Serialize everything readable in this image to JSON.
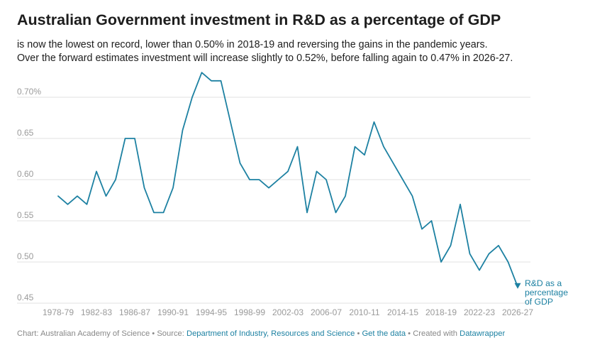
{
  "header": {
    "title": "Australian Government investment in R&D as a percentage of GDP",
    "description_line1": "is now the lowest on record, lower than 0.50% in 2018-19 and reversing the gains in the pandemic years.",
    "description_line2": "Over the forward estimates investment will increase slightly to 0.52%, before falling again to 0.47% in 2026-27."
  },
  "footer": {
    "chart_credit": "Chart: Australian Academy of Science",
    "sep1": " • ",
    "source_label": "Source: ",
    "source_link": "Department of Industry, Resources and Science",
    "sep2": " • ",
    "get_data": "Get the data",
    "sep3": " • ",
    "created_with": "Created with ",
    "datawrapper": "Datawrapper"
  },
  "colors": {
    "line": "#1d81a2",
    "grid": "#e2e2e2",
    "tick_text": "#9a9a9a"
  },
  "chart_data": {
    "type": "line",
    "title": "Australian Government investment in R&D as a percentage of GDP",
    "xlabel": "",
    "ylabel": "",
    "ylim": [
      0.45,
      0.72
    ],
    "y_ticks": [
      0.45,
      0.5,
      0.55,
      0.6,
      0.65,
      0.7
    ],
    "y_tick_labels": [
      "0.45",
      "0.50",
      "0.55",
      "0.60",
      "0.65",
      "0.70%"
    ],
    "x_tick_labels": [
      "1978-79",
      "1982-83",
      "1986-87",
      "1990-91",
      "1994-95",
      "1998-99",
      "2002-03",
      "2006-07",
      "2010-11",
      "2014-15",
      "2018-19",
      "2022-23",
      "2026-27"
    ],
    "grid": true,
    "series": [
      {
        "name": "R&D as a percentage of GDP",
        "label_lines": [
          "R&D as a",
          "percentage",
          "of GDP"
        ],
        "x": [
          "1978-79",
          "1979-80",
          "1980-81",
          "1981-82",
          "1982-83",
          "1983-84",
          "1984-85",
          "1985-86",
          "1986-87",
          "1987-88",
          "1988-89",
          "1989-90",
          "1990-91",
          "1991-92",
          "1992-93",
          "1993-94",
          "1994-95",
          "1995-96",
          "1996-97",
          "1997-98",
          "1998-99",
          "1999-00",
          "2000-01",
          "2001-02",
          "2002-03",
          "2003-04",
          "2004-05",
          "2005-06",
          "2006-07",
          "2007-08",
          "2008-09",
          "2009-10",
          "2010-11",
          "2011-12",
          "2012-13",
          "2013-14",
          "2014-15",
          "2015-16",
          "2016-17",
          "2017-18",
          "2018-19",
          "2019-20",
          "2020-21",
          "2021-22",
          "2022-23",
          "2023-24",
          "2024-25",
          "2025-26",
          "2026-27"
        ],
        "values": [
          0.58,
          0.57,
          0.58,
          0.57,
          0.61,
          0.58,
          0.6,
          0.65,
          0.65,
          0.59,
          0.56,
          0.56,
          0.59,
          0.66,
          0.7,
          0.73,
          0.72,
          0.72,
          0.67,
          0.62,
          0.6,
          0.6,
          0.59,
          0.6,
          0.61,
          0.64,
          0.56,
          0.61,
          0.6,
          0.56,
          0.58,
          0.64,
          0.63,
          0.67,
          0.64,
          0.62,
          0.6,
          0.58,
          0.54,
          0.55,
          0.5,
          0.52,
          0.57,
          0.51,
          0.49,
          0.51,
          0.52,
          0.5,
          0.47
        ]
      }
    ]
  }
}
